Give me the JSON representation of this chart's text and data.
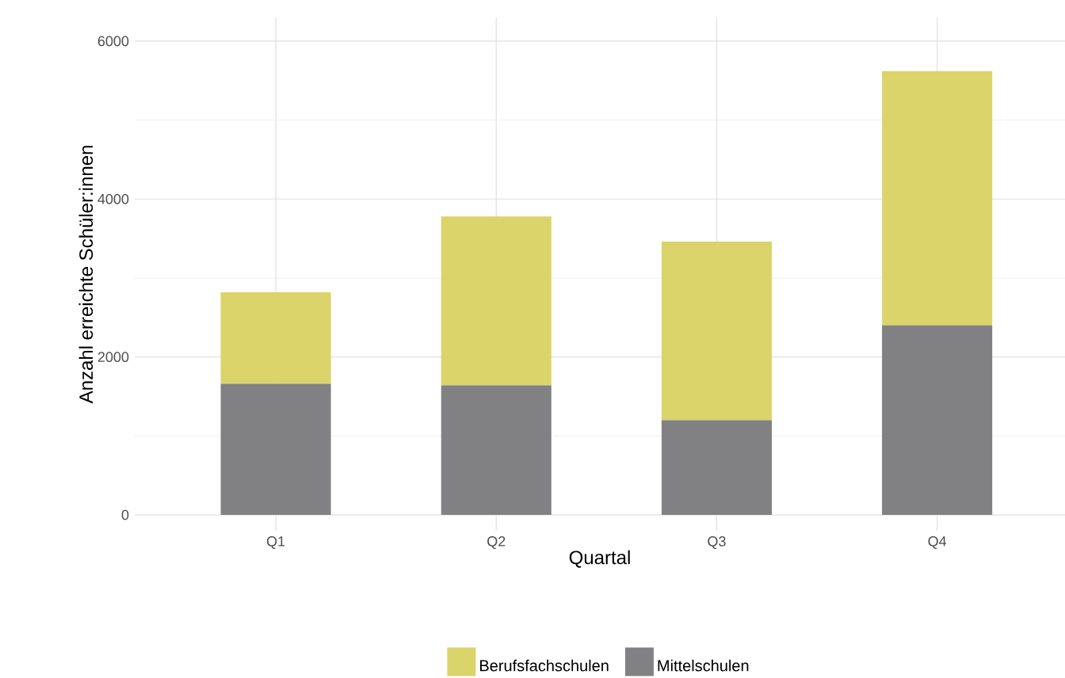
{
  "chart_data": {
    "type": "bar",
    "stacked": true,
    "xlabel": "Quartal",
    "ylabel": "Anzahl erreichte Schüler:innen",
    "categories": [
      "Q1",
      "Q2",
      "Q3",
      "Q4"
    ],
    "series": [
      {
        "name": "Mittelschulen",
        "color": "#818184",
        "values": [
          1660,
          1640,
          1200,
          2400
        ]
      },
      {
        "name": "Berufsfachschulen",
        "color": "#dad46a",
        "values": [
          1160,
          2140,
          2260,
          3220
        ]
      }
    ],
    "ylim": [
      -200,
      6300
    ],
    "yticks": [
      0,
      2000,
      4000,
      6000
    ],
    "grid": true,
    "legend": "bottom"
  }
}
